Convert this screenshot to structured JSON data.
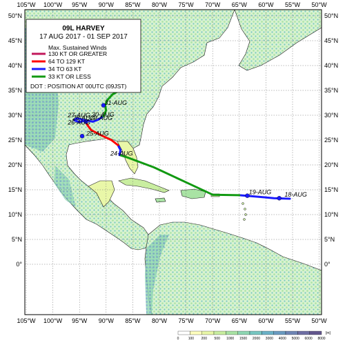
{
  "legend": {
    "storm_name": "09L  HARVEY",
    "date_range": "17 AUG 2017 - 01 SEP 2017",
    "winds_heading": "Max. Sustained Winds",
    "categories": [
      {
        "label": "130 KT OR GREATER",
        "color": "#c2185b"
      },
      {
        "label": "64 TO 129 KT",
        "color": "#ff0000"
      },
      {
        "label": "34 TO 63 KT",
        "color": "#1a1aff"
      },
      {
        "label": "33 KT OR LESS",
        "color": "#119911"
      }
    ],
    "dot_note": "DOT : POSITION AT 00UTC (09JST)"
  },
  "axes": {
    "lon_ticks": [
      "105°W",
      "100°W",
      "95°W",
      "90°W",
      "85°W",
      "80°W",
      "75°W",
      "70°W",
      "65°W",
      "60°W",
      "55°W",
      "50°W"
    ],
    "lon_values": [
      -105,
      -100,
      -95,
      -90,
      -85,
      -80,
      -75,
      -70,
      -65,
      -60,
      -55,
      -50
    ],
    "lat_ticks": [
      "50°N",
      "45°N",
      "40°N",
      "35°N",
      "30°N",
      "25°N",
      "20°N",
      "15°N",
      "10°N",
      "5°N",
      "0°"
    ],
    "lat_values": [
      50,
      45,
      40,
      35,
      30,
      25,
      20,
      15,
      10,
      5,
      0
    ]
  },
  "track": {
    "segments": [
      {
        "category": 2,
        "points": [
          [
            -55.5,
            13.2
          ],
          [
            -58.5,
            13.3
          ],
          [
            -61.5,
            13.6
          ],
          [
            -65,
            13.9
          ]
        ]
      },
      {
        "category": 3,
        "points": [
          [
            -65,
            13.9
          ],
          [
            -70,
            14.0
          ],
          [
            -75,
            16.5
          ],
          [
            -81,
            19.5
          ],
          [
            -86,
            21.5
          ],
          [
            -87.5,
            22.0
          ]
        ]
      },
      {
        "category": 2,
        "points": [
          [
            -87.5,
            22.0
          ],
          [
            -87.3,
            23.0
          ],
          [
            -87.8,
            24.0
          ]
        ]
      },
      {
        "category": 1,
        "points": [
          [
            -87.8,
            24.0
          ],
          [
            -89,
            25.0
          ],
          [
            -91,
            26.0
          ],
          [
            -92.8,
            27.0
          ],
          [
            -93.5,
            28.0
          ],
          [
            -94,
            29.0
          ]
        ]
      },
      {
        "category": 2,
        "points": [
          [
            -94,
            29.0
          ],
          [
            -95.5,
            29.4
          ],
          [
            -96,
            29.0
          ],
          [
            -95,
            28.6
          ],
          [
            -93.8,
            29.0
          ],
          [
            -92.5,
            28.7
          ],
          [
            -91.5,
            29.1
          ],
          [
            -90.5,
            29.8
          ]
        ]
      },
      {
        "category": 3,
        "points": [
          [
            -90.5,
            29.8
          ],
          [
            -90,
            31.0
          ],
          [
            -90.2,
            32.0
          ],
          [
            -89.8,
            33.0
          ],
          [
            -88.8,
            34.2
          ],
          [
            -87.5,
            35.0
          ],
          [
            -86.7,
            35.8
          ]
        ]
      }
    ],
    "dots": [
      [
        -57.5,
        13.3
      ],
      [
        -63.5,
        13.8
      ],
      [
        -90.5,
        32.0
      ],
      [
        -93.8,
        28.7
      ],
      [
        -94.5,
        25.8
      ]
    ],
    "labels": [
      {
        "text": "18-AUG",
        "lon": -56.5,
        "lat": 13.6
      },
      {
        "text": "19-AUG",
        "lon": -63.2,
        "lat": 14.1
      },
      {
        "text": "24-AUG",
        "lon": -89.2,
        "lat": 21.9
      },
      {
        "text": "25-AUG",
        "lon": -93.7,
        "lat": 25.9
      },
      {
        "text": "26-AUG",
        "lon": -97.2,
        "lat": 28.1
      },
      {
        "text": "27-AUG",
        "lon": -97.2,
        "lat": 29.6
      },
      {
        "text": "28-AUG",
        "lon": -96.3,
        "lat": 29.0
      },
      {
        "text": "29-AUG",
        "lon": -93.0,
        "lat": 29.0
      },
      {
        "text": "30-AUG",
        "lon": -92.7,
        "lat": 29.7
      },
      {
        "text": "31-AUG",
        "lon": -90.3,
        "lat": 32.1
      }
    ]
  },
  "elevation_scale": {
    "ticks": [
      "0",
      "100",
      "200",
      "500",
      "1000",
      "1500",
      "2000",
      "3000",
      "4000",
      "5000",
      "6000",
      "8000"
    ],
    "unit": "[m]",
    "colors": [
      "#ffffff",
      "#ffffbe",
      "#e9f7a8",
      "#c9eea0",
      "#a9e3a4",
      "#8fd7b3",
      "#78c7c2",
      "#6cb2c8",
      "#6b9cc2",
      "#6f86b6",
      "#6f6fa5",
      "#64588f"
    ]
  }
}
